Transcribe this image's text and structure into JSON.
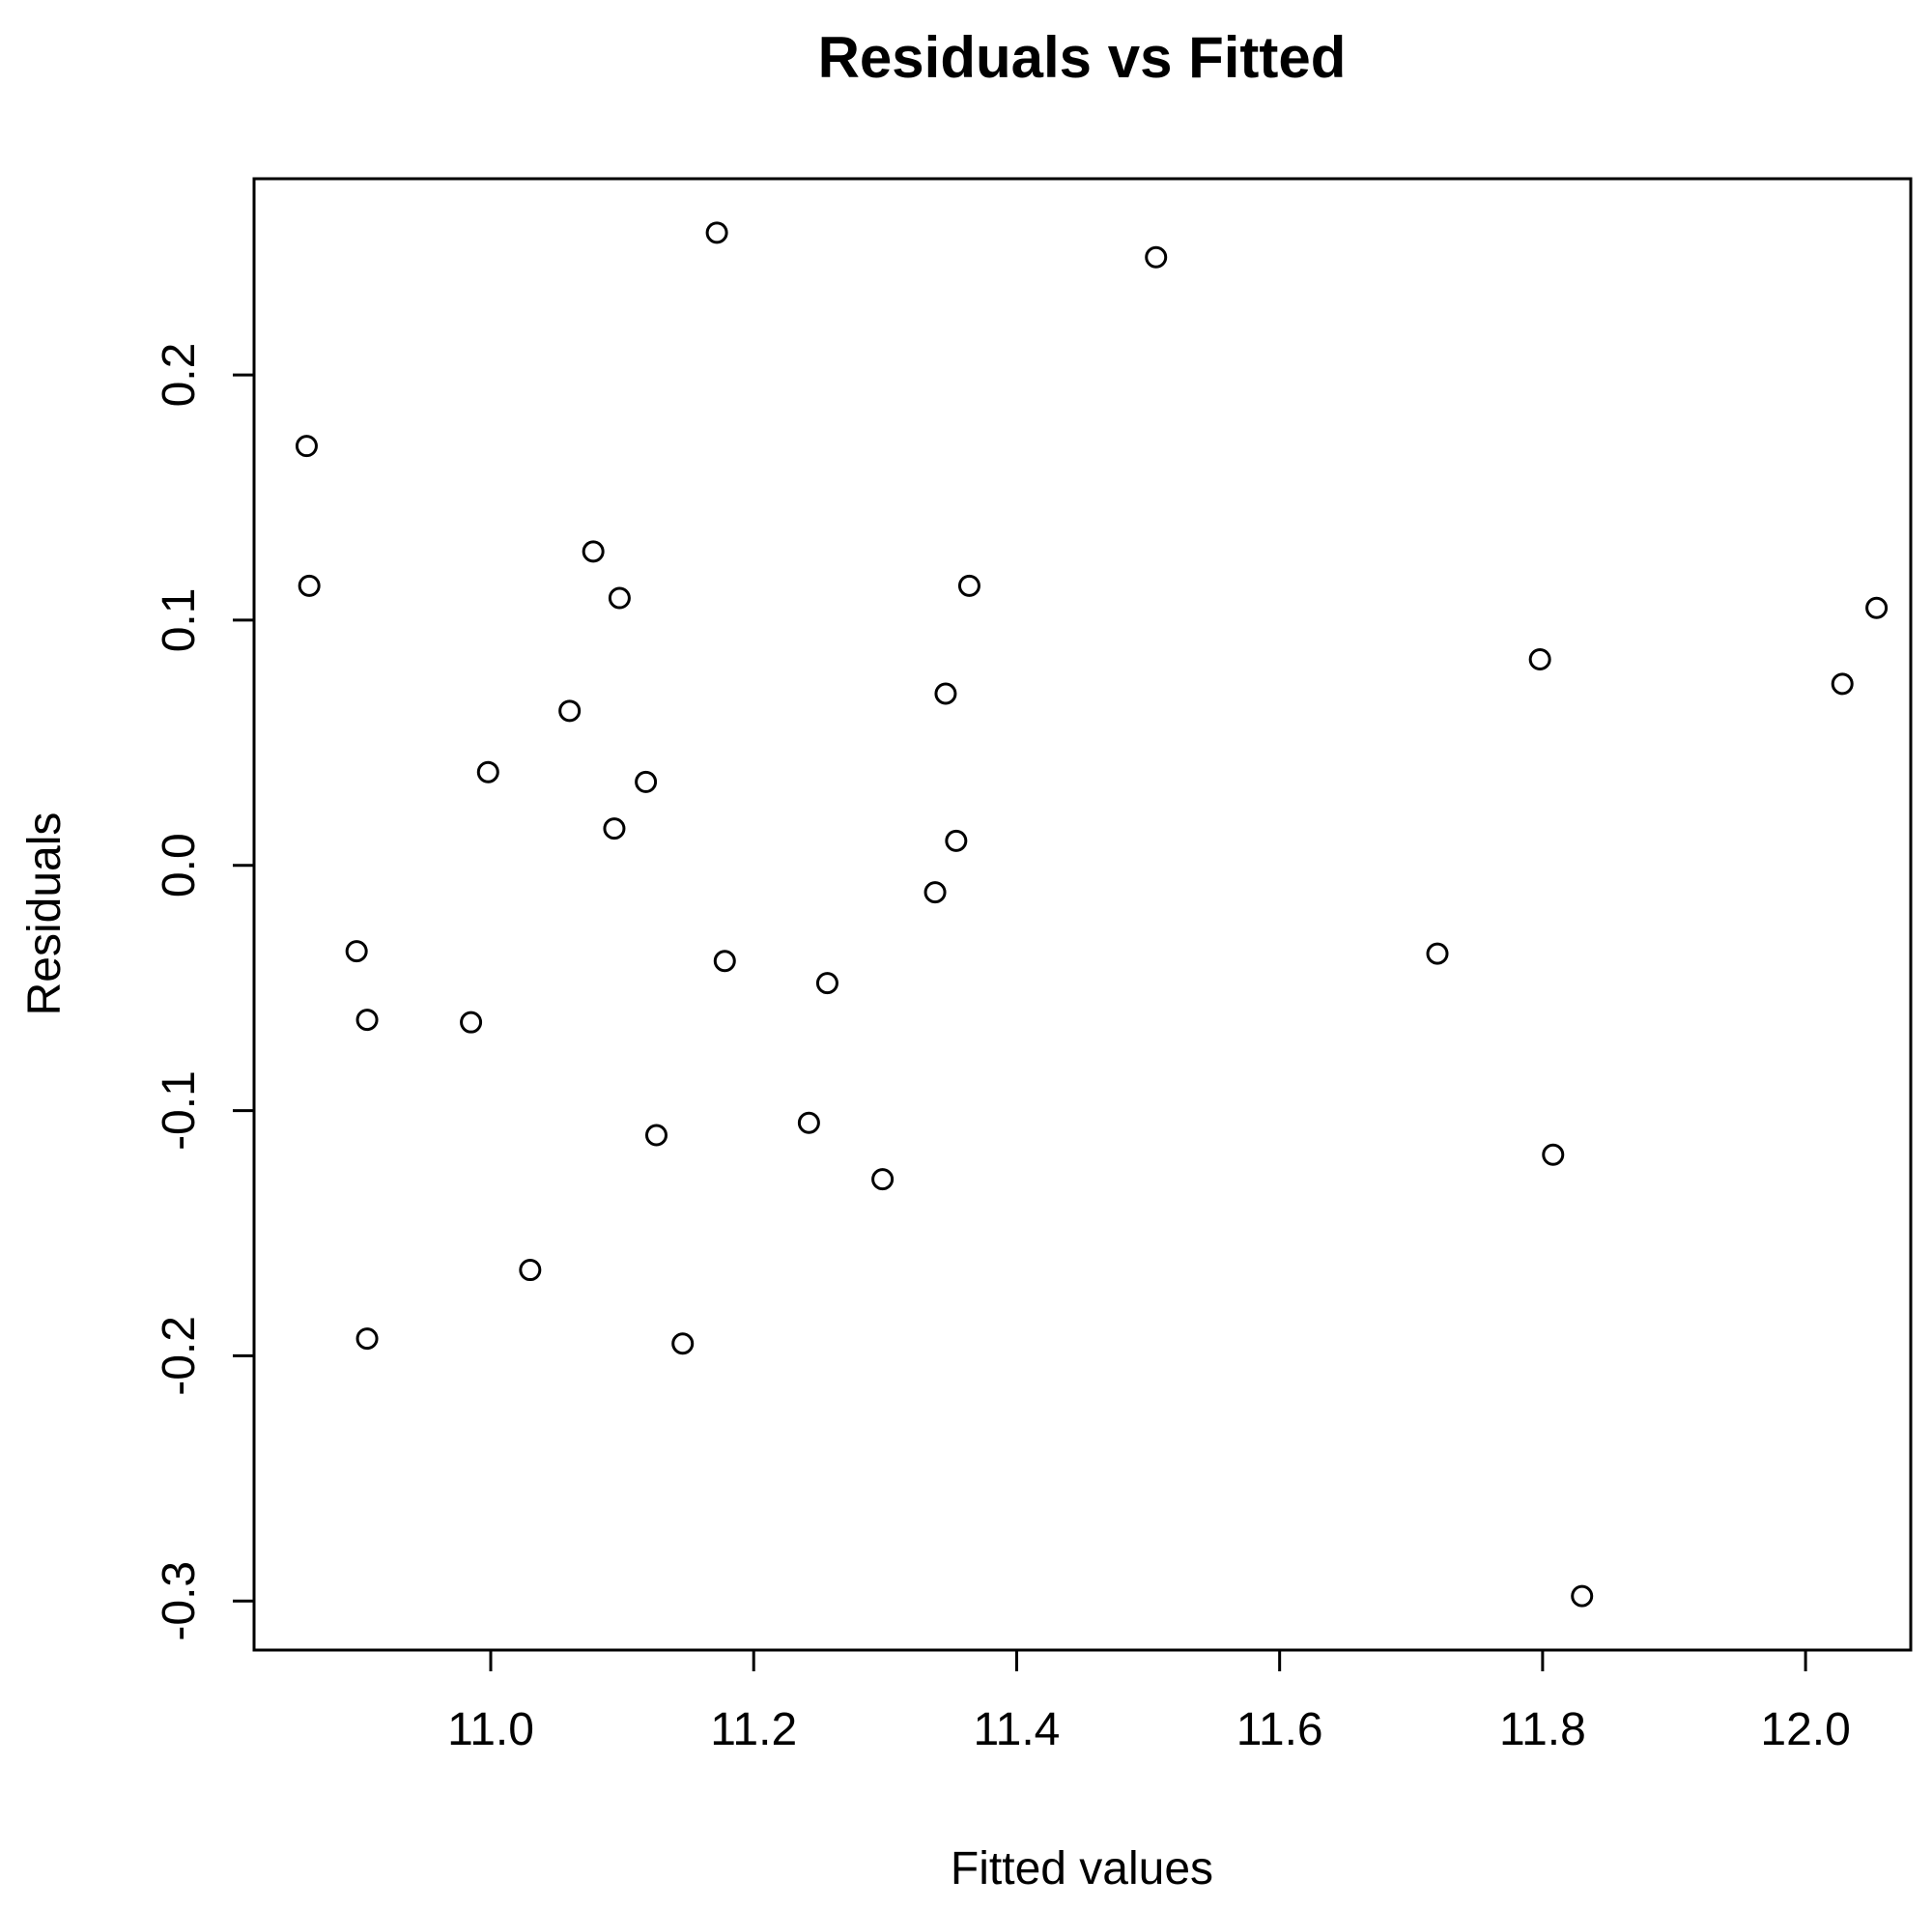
{
  "chart_data": {
    "type": "scatter",
    "title": "Residuals vs Fitted",
    "xlabel": "Fitted values",
    "ylabel": "Residuals",
    "xlim": [
      10.82,
      12.08
    ],
    "ylim": [
      -0.32,
      0.28
    ],
    "x_ticks": [
      11.0,
      11.2,
      11.4,
      11.6,
      11.8,
      12.0
    ],
    "x_tick_labels": [
      "11.0",
      "11.2",
      "11.4",
      "11.6",
      "11.8",
      "12.0"
    ],
    "y_ticks": [
      -0.3,
      -0.2,
      -0.1,
      0.0,
      0.1,
      0.2
    ],
    "y_tick_labels": [
      "-0.3",
      "-0.2",
      "-0.1",
      "0.0",
      "0.1",
      "0.2"
    ],
    "grid": false,
    "marker": "open-circle",
    "points": [
      {
        "x": 10.86,
        "y": 0.171
      },
      {
        "x": 10.862,
        "y": 0.114
      },
      {
        "x": 10.898,
        "y": -0.035
      },
      {
        "x": 10.906,
        "y": -0.063
      },
      {
        "x": 10.906,
        "y": -0.193
      },
      {
        "x": 10.985,
        "y": -0.064
      },
      {
        "x": 10.998,
        "y": 0.038
      },
      {
        "x": 11.03,
        "y": -0.165
      },
      {
        "x": 11.06,
        "y": 0.063
      },
      {
        "x": 11.078,
        "y": 0.128
      },
      {
        "x": 11.094,
        "y": 0.015
      },
      {
        "x": 11.098,
        "y": 0.109
      },
      {
        "x": 11.118,
        "y": 0.034
      },
      {
        "x": 11.126,
        "y": -0.11
      },
      {
        "x": 11.146,
        "y": -0.195
      },
      {
        "x": 11.172,
        "y": 0.258
      },
      {
        "x": 11.178,
        "y": -0.039
      },
      {
        "x": 11.242,
        "y": -0.105
      },
      {
        "x": 11.256,
        "y": -0.048
      },
      {
        "x": 11.298,
        "y": -0.128
      },
      {
        "x": 11.338,
        "y": -0.011
      },
      {
        "x": 11.346,
        "y": 0.07
      },
      {
        "x": 11.354,
        "y": 0.01
      },
      {
        "x": 11.364,
        "y": 0.114
      },
      {
        "x": 11.506,
        "y": 0.248
      },
      {
        "x": 11.72,
        "y": -0.036
      },
      {
        "x": 11.798,
        "y": 0.084
      },
      {
        "x": 11.808,
        "y": -0.118
      },
      {
        "x": 11.83,
        "y": -0.298
      },
      {
        "x": 12.028,
        "y": 0.074
      },
      {
        "x": 12.054,
        "y": 0.105
      }
    ]
  }
}
